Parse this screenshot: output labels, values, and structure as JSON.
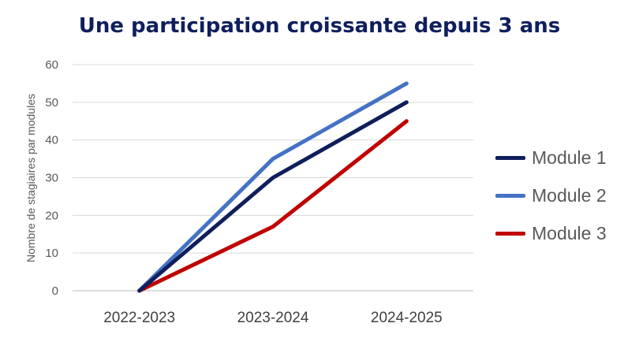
{
  "chart_data": {
    "type": "line",
    "title": "Une participation croissante depuis 3 ans",
    "xlabel": "",
    "ylabel": "Nombre de stagiaires par modules",
    "categories": [
      "2022-2023",
      "2023-2024",
      "2024-2025"
    ],
    "ylim": [
      0,
      60
    ],
    "yticks": [
      0,
      10,
      20,
      30,
      40,
      50,
      60
    ],
    "grid": true,
    "legend_position": "right",
    "series": [
      {
        "name": "Module 2",
        "values": [
          0,
          35,
          55
        ],
        "color": "#4472c4"
      },
      {
        "name": "Module 1",
        "values": [
          0,
          30,
          50
        ],
        "color": "#0f1f5c"
      },
      {
        "name": "Module 3",
        "values": [
          0,
          17,
          45
        ],
        "color": "#c00000"
      }
    ],
    "legend_order": [
      "Module 1",
      "Module 2",
      "Module 3"
    ]
  }
}
